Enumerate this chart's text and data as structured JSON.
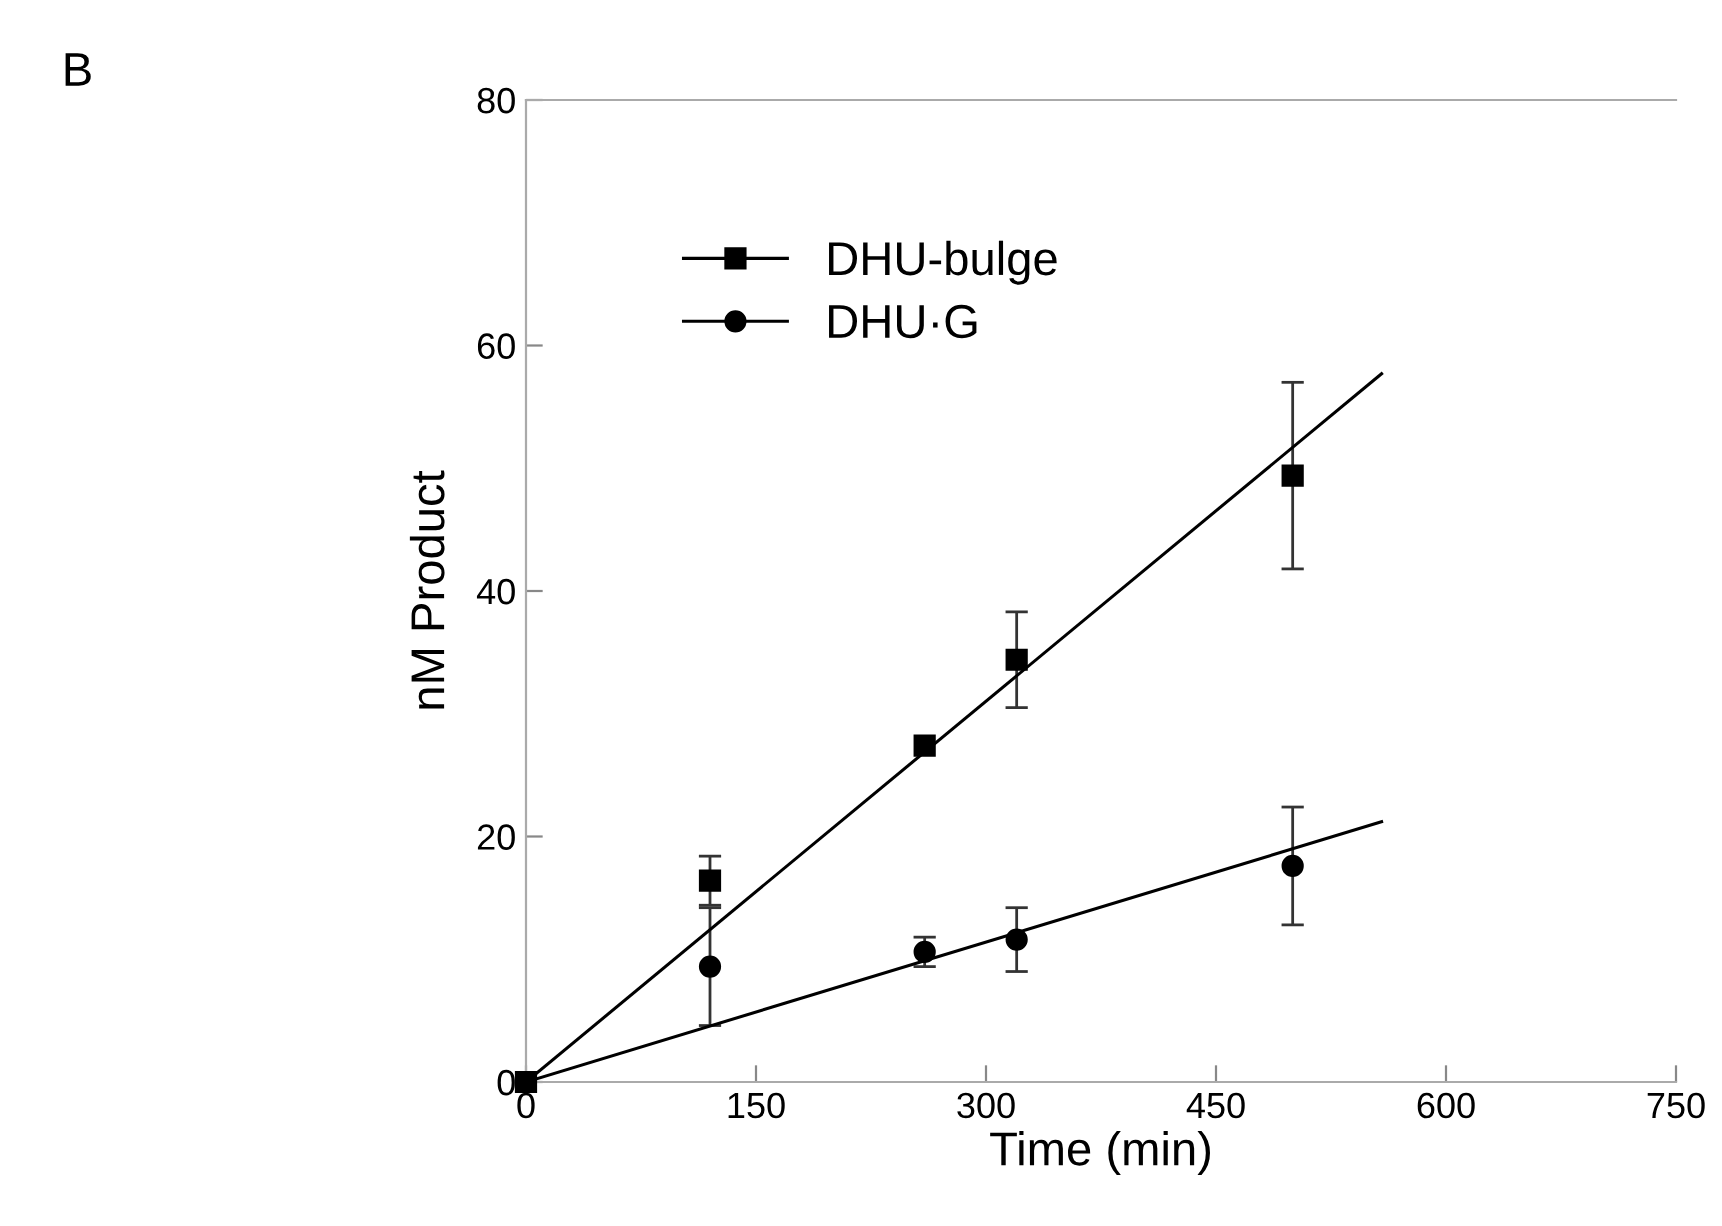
{
  "chart_data": {
    "type": "scatter",
    "xlabel": "Time (min)",
    "ylabel": "nM Product",
    "annotations": [
      "B"
    ],
    "xlim": [
      0,
      750
    ],
    "xticks": [
      0,
      150,
      300,
      450,
      600,
      750
    ],
    "ylim": [
      0,
      80
    ],
    "yticks": [
      0,
      20,
      40,
      60,
      80
    ],
    "legend": "top left",
    "grid": false,
    "series": [
      {
        "name": "DHU-bulge",
        "color": "#000000",
        "marker": "square",
        "x": [
          0,
          120,
          260,
          320,
          500
        ],
        "values": [
          0,
          16.4,
          27.4,
          34.4,
          49.4
        ],
        "errors": [
          null,
          2.0,
          null,
          3.9,
          7.6
        ]
      },
      {
        "name": "DHU·G",
        "color": "#000000",
        "marker": "circle",
        "x": [
          120,
          260,
          320,
          500
        ],
        "values": [
          9.4,
          10.6,
          11.6,
          17.6
        ],
        "errors": [
          4.8,
          1.2,
          2.6,
          4.8
        ]
      },
      {
        "type": "line",
        "color": "#000000",
        "marker": "none",
        "x": [
          0,
          558
        ],
        "values": [
          0,
          57.7
        ]
      },
      {
        "type": "line",
        "color": "#000000",
        "marker": "none",
        "x": [
          0,
          558
        ],
        "values": [
          0,
          21.2
        ]
      }
    ]
  }
}
